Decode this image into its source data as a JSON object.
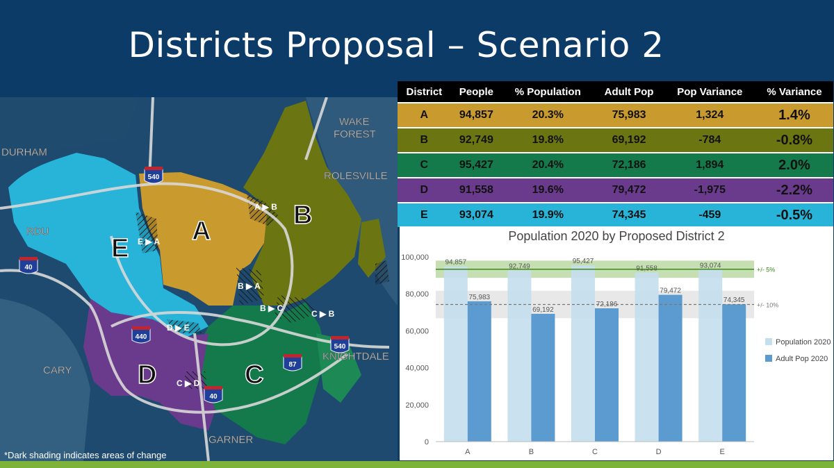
{
  "slide": {
    "title": "Districts Proposal – Scenario 2",
    "footnote": "*Dark shading indicates areas of change"
  },
  "colors": {
    "background": "#0c3b67",
    "A": "#c99a2e",
    "B": "#6b7512",
    "C": "#147a4b",
    "D": "#6a3b8c",
    "E": "#28b4d8",
    "accent_bar": "#7eb33a"
  },
  "map": {
    "places": [
      "DURHAM",
      "RDU",
      "CARY",
      "WAKE",
      "FOREST",
      "ROLESVILLE",
      "KNIGHTDALE",
      "GARNER"
    ],
    "district_labels": [
      "A",
      "B",
      "C",
      "D",
      "E"
    ],
    "change_labels": [
      "A ▶ B",
      "E ▶ A",
      "B ▶ A",
      "B ▶ C",
      "C ▶ B",
      "D ▶ E",
      "C ▶ D"
    ],
    "highways": [
      "540",
      "40",
      "440",
      "540",
      "87",
      "40"
    ]
  },
  "table": {
    "headers": [
      "District",
      "People",
      "% Population",
      "Adult Pop",
      "Pop Variance",
      "% Variance"
    ],
    "rows": [
      {
        "district": "A",
        "people": "94,857",
        "pct_pop": "20.3%",
        "adult": "75,983",
        "variance": "1,324",
        "pct_var": "1.4%"
      },
      {
        "district": "B",
        "people": "92,749",
        "pct_pop": "19.8%",
        "adult": "69,192",
        "variance": "-784",
        "pct_var": "-0.8%"
      },
      {
        "district": "C",
        "people": "95,427",
        "pct_pop": "20.4%",
        "adult": "72,186",
        "variance": "1,894",
        "pct_var": "2.0%"
      },
      {
        "district": "D",
        "people": "91,558",
        "pct_pop": "19.6%",
        "adult": "79,472",
        "variance": "-1,975",
        "pct_var": "-2.2%"
      },
      {
        "district": "E",
        "people": "93,074",
        "pct_pop": "19.9%",
        "adult": "74,345",
        "variance": "-459",
        "pct_var": "-0.5%"
      }
    ]
  },
  "chart_data": {
    "type": "bar",
    "title": "Population 2020 by Proposed District 2",
    "categories": [
      "A",
      "B",
      "C",
      "D",
      "E"
    ],
    "series": [
      {
        "name": "Population 2020",
        "values": [
          94857,
          92749,
          95427,
          91558,
          93074
        ],
        "labels": [
          "94,857",
          "92,749",
          "95,427",
          "91,558",
          "93,074"
        ],
        "color": "#c4deee"
      },
      {
        "name": "Adult Pop 2020",
        "values": [
          75983,
          69192,
          72186,
          79472,
          74345
        ],
        "labels": [
          "75,983",
          "69,192",
          "72,186",
          "79,472",
          "74,345"
        ],
        "color": "#5b9bcf"
      }
    ],
    "ylim": [
      0,
      100000
    ],
    "yticks": [
      0,
      20000,
      40000,
      60000,
      80000,
      100000
    ],
    "ytick_labels": [
      "0",
      "20,000",
      "40,000",
      "60,000",
      "80,000",
      "100,000"
    ],
    "bands": [
      {
        "label": "+/- 5%",
        "center": 93333,
        "low": 88666,
        "high": 98000,
        "band_color": "#b6d7a0",
        "line_color": "#3a8a1a"
      },
      {
        "label": "+/- 10%",
        "center": 74236,
        "low": 66812,
        "high": 81660,
        "band_color": "#e2e2e2",
        "line_color": "#777777"
      }
    ],
    "legend_position": "right",
    "grid": false
  }
}
